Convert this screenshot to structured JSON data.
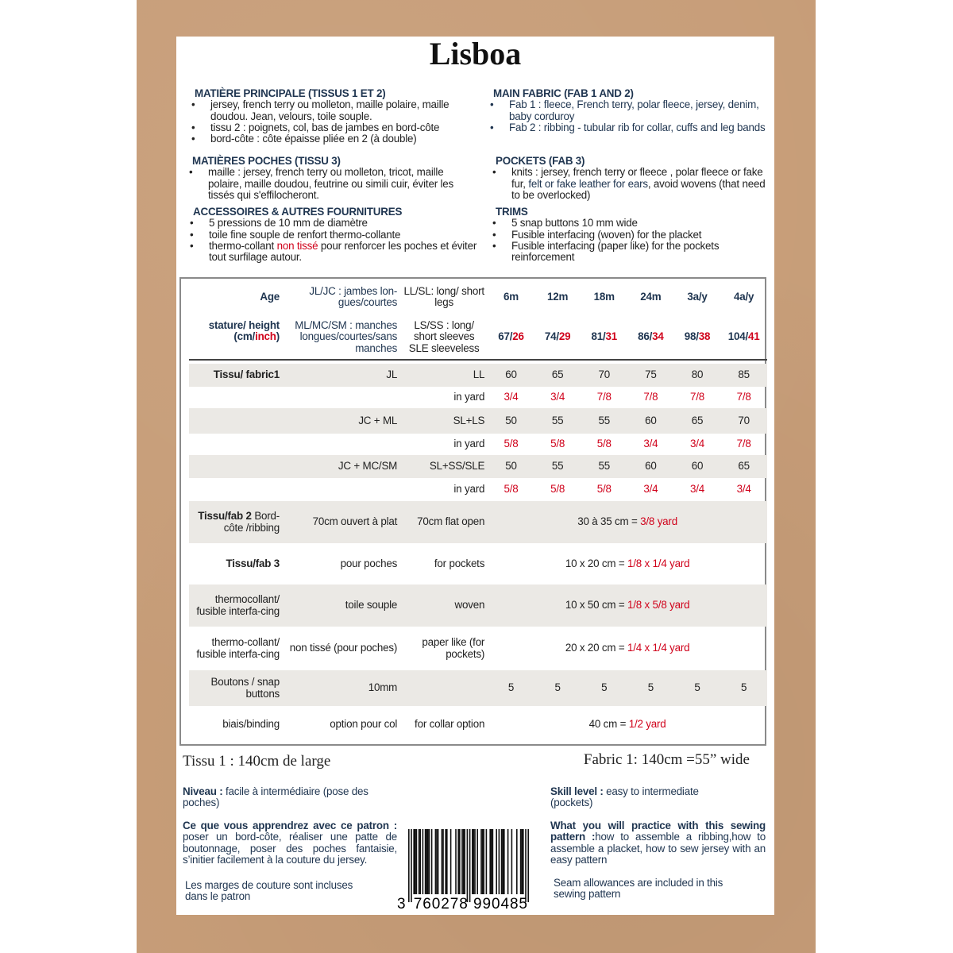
{
  "title": "Lisboa",
  "left": {
    "main": {
      "heading": "MATIÈRE PRINCIPALE (TISSUS 1 ET 2)",
      "items": [
        "jersey, french terry ou molleton, maille polaire, maille doudou. Jean, velours, toile souple.",
        "tissu 2 : poignets, col, bas de jambes en bord-côte",
        "bord-côte : côte épaisse pliée en 2 (à double)"
      ]
    },
    "pockets": {
      "heading": "MATIÈRES POCHES (TISSU 3)",
      "items": [
        "maille :  jersey, french terry ou molleton, tricot, maille polaire, maille doudou, feutrine ou simili cuir, éviter les tissés qui s'effilocheront."
      ]
    },
    "accessories": {
      "heading": "ACCESSOIRES & AUTRES FOURNITURES",
      "items": [
        "5 pressions de 10 mm de diamètre",
        "toile fine souple de renfort thermo-collante"
      ],
      "item3_a": "thermo-collant ",
      "item3_red": "non tissé",
      "item3_b": " pour renforcer les poches et éviter tout surfilage autour."
    }
  },
  "right": {
    "main": {
      "heading": "MAIN FABRIC (FAB 1 AND 2)",
      "items": [
        "Fab 1 : fleece, French terry, polar fleece, jersey, denim, baby corduroy",
        "Fab 2 : ribbing - tubular rib for collar, cuffs and leg bands"
      ]
    },
    "pockets": {
      "heading": "POCKETS (FAB 3)",
      "item_a": "knits :  jersey, french terry or fleece , polar fleece or fake fur, ",
      "item_navy": "felt or fake leather for ears",
      "item_b": ", avoid wovens (that need to be overlocked)"
    },
    "trims": {
      "heading": "TRIMS",
      "items": [
        "5 snap buttons 10 mm wide",
        "Fusible interfacing (woven) for the placket",
        "Fusible interfacing (paper like) for the pockets reinforcement"
      ]
    }
  },
  "table": {
    "age_label": "Age",
    "height_label_a": "stature/ height",
    "height_label_b": "(cm/",
    "height_label_inch": "inch",
    "height_label_c": ")",
    "fr_legend_1": "JL/JC : jambes lon-gues/courtes",
    "en_legend_1": "LL/SL: long/ short legs",
    "fr_legend_2": "ML/MC/SM : manches longues/courtes/sans manches",
    "en_legend_2": "LS/SS : long/ short sleeves SLE sleeveless",
    "sizes": [
      "6m",
      "12m",
      "18m",
      "24m",
      "3a/y",
      "4a/y"
    ],
    "heights_cm": [
      "67",
      "74",
      "81",
      "86",
      "98",
      "104"
    ],
    "heights_inch": [
      "26",
      "29",
      "31",
      "34",
      "38",
      "41"
    ],
    "fabric1_label": "Tissu/ fabric1",
    "fabric1_rows": [
      {
        "fr": "JL",
        "en": "LL",
        "cm": [
          "60",
          "65",
          "70",
          "75",
          "80",
          "85"
        ],
        "yard_label": "in yard",
        "yard": [
          "3/4",
          "3/4",
          "7/8",
          "7/8",
          "7/8",
          "7/8"
        ]
      },
      {
        "fr": "JC + ML",
        "en": "SL+LS",
        "cm": [
          "50",
          "55",
          "55",
          "60",
          "65",
          "70"
        ],
        "yard_label": "in yard",
        "yard": [
          "5/8",
          "5/8",
          "5/8",
          "3/4",
          "3/4",
          "7/8"
        ]
      },
      {
        "fr": "JC + MC/SM",
        "en": "SL+SS/SLE",
        "cm": [
          "50",
          "55",
          "55",
          "60",
          "60",
          "65"
        ],
        "yard_label": "in yard",
        "yard": [
          "5/8",
          "5/8",
          "5/8",
          "3/4",
          "3/4",
          "3/4"
        ]
      }
    ],
    "rows": [
      {
        "label_bold": "Tissu/fab 2",
        "label": " Bord-côte /ribbing",
        "fr": "70cm ouvert à plat",
        "en": "70cm flat open",
        "cm": "30 à 35 cm = ",
        "yard": "3/8 yard"
      },
      {
        "label_bold": "Tissu/fab 3",
        "label": "",
        "fr": "pour poches",
        "en": "for pockets",
        "cm": "10 x 20 cm = ",
        "yard": "1/8 x 1/4 yard"
      },
      {
        "label_bold": "",
        "label": "thermocollant/ fusible interfa-cing",
        "fr": "toile souple",
        "en": "woven",
        "cm": "10 x 50 cm = ",
        "yard": "1/8 x 5/8 yard"
      },
      {
        "label_bold": "",
        "label": "thermo-collant/ fusible interfa-cing",
        "fr": "non tissé (pour poches)",
        "en": "paper like (for pockets)",
        "cm": "20 x 20 cm = ",
        "yard": "1/4 x 1/4 yard"
      }
    ],
    "buttons": {
      "label": "Boutons / snap buttons",
      "fr": "10mm",
      "en": "",
      "counts": [
        "5",
        "5",
        "5",
        "5",
        "5",
        "5"
      ]
    },
    "binding": {
      "label": "biais/binding",
      "fr": "option pour col",
      "en": "for collar option",
      "cm": "40 cm = ",
      "yard": "1/2 yard"
    }
  },
  "footer": {
    "width_fr": "Tissu 1 : 140cm de large",
    "width_en": "Fabric 1: 140cm =55” wide",
    "level_fr_label": "Niveau :",
    "level_fr": " facile à intermédiaire (pose des poches)",
    "level_en_label": "Skill level :",
    "level_en": " easy to intermediate (pockets)",
    "learn_fr_label": "Ce que vous apprendrez avec ce patron :",
    "learn_fr": " poser un bord-côte, réaliser une patte de boutonnage, poser des poches fantaisie, s’initier facilement à la couture du jersey.",
    "learn_en_label": "What you will practice with this sewing pattern :",
    "learn_en": "how to assemble a ribbing,how to assemble a placket, how to sew jersey with an easy pattern",
    "seam_fr": "Les marges de couture sont incluses dans le patron",
    "seam_en": "Seam allowances are included in this sewing pattern",
    "barcode": "3760278990485",
    "barcode_first": "3",
    "barcode_left": "760278",
    "barcode_right": "990485"
  },
  "colors": {
    "navy": "#1f3550",
    "red": "#d0021b",
    "kraft": "#c79d78",
    "row_shade": "#ebe9e5"
  }
}
